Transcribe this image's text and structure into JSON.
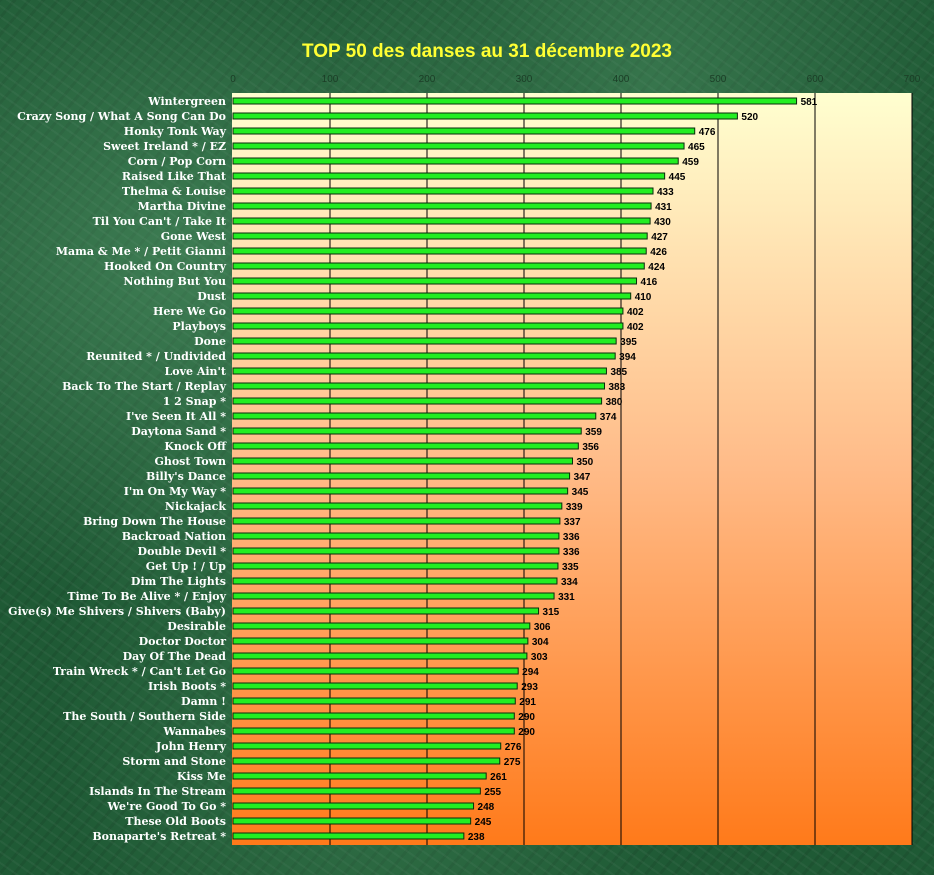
{
  "chart_data": {
    "type": "bar",
    "orientation": "horizontal",
    "title": "TOP 50 des danses au 31 décembre 2023",
    "xlim": [
      0,
      700
    ],
    "xticks": [
      0,
      100,
      200,
      300,
      400,
      500,
      600,
      700
    ],
    "grid": true,
    "legend": "none",
    "colors": {
      "title": "#ffff33",
      "bar": "#22ee22",
      "plot_top": "#ffffd0",
      "plot_bottom": "#ff7a1a"
    },
    "categories": [
      "Wintergreen",
      "Crazy Song / What A Song Can Do",
      "Honky Tonk Way",
      "Sweet Ireland * / EZ",
      "Corn / Pop Corn",
      "Raised Like That",
      "Thelma & Louise",
      "Martha Divine",
      "Til You Can't / Take It",
      "Gone West",
      "Mama & Me * / Petit Gianni",
      "Hooked On Country",
      "Nothing But You",
      "Dust",
      "Here We Go",
      "Playboys",
      "Done",
      "Reunited * / Undivided",
      "Love Ain't",
      "Back To The Start / Replay",
      "1 2 Snap *",
      "I've Seen It All *",
      "Daytona Sand *",
      "Knock Off",
      "Ghost Town",
      "Billy's Dance",
      "I'm On My Way *",
      "Nickajack",
      "Bring Down The House",
      "Backroad Nation",
      "Double Devil *",
      "Get Up ! / Up",
      "Dim The Lights",
      "Time To Be Alive * / Enjoy",
      "Give(s) Me Shivers / Shivers (Baby)",
      "Desirable",
      "Doctor Doctor",
      "Day Of The Dead",
      "Train Wreck * / Can't Let Go",
      "Irish Boots *",
      "Damn !",
      "The South  / Southern Side",
      "Wannabes",
      "John Henry",
      "Storm and Stone",
      "Kiss Me",
      "Islands In The Stream",
      "We're Good To Go *",
      "These Old Boots",
      "Bonaparte's Retreat *"
    ],
    "values": [
      581,
      520,
      476,
      465,
      459,
      445,
      433,
      431,
      430,
      427,
      426,
      424,
      416,
      410,
      402,
      402,
      395,
      394,
      385,
      383,
      380,
      374,
      359,
      356,
      350,
      347,
      345,
      339,
      337,
      336,
      336,
      335,
      334,
      331,
      315,
      306,
      304,
      303,
      294,
      293,
      291,
      290,
      290,
      276,
      275,
      261,
      255,
      248,
      245,
      238
    ]
  }
}
